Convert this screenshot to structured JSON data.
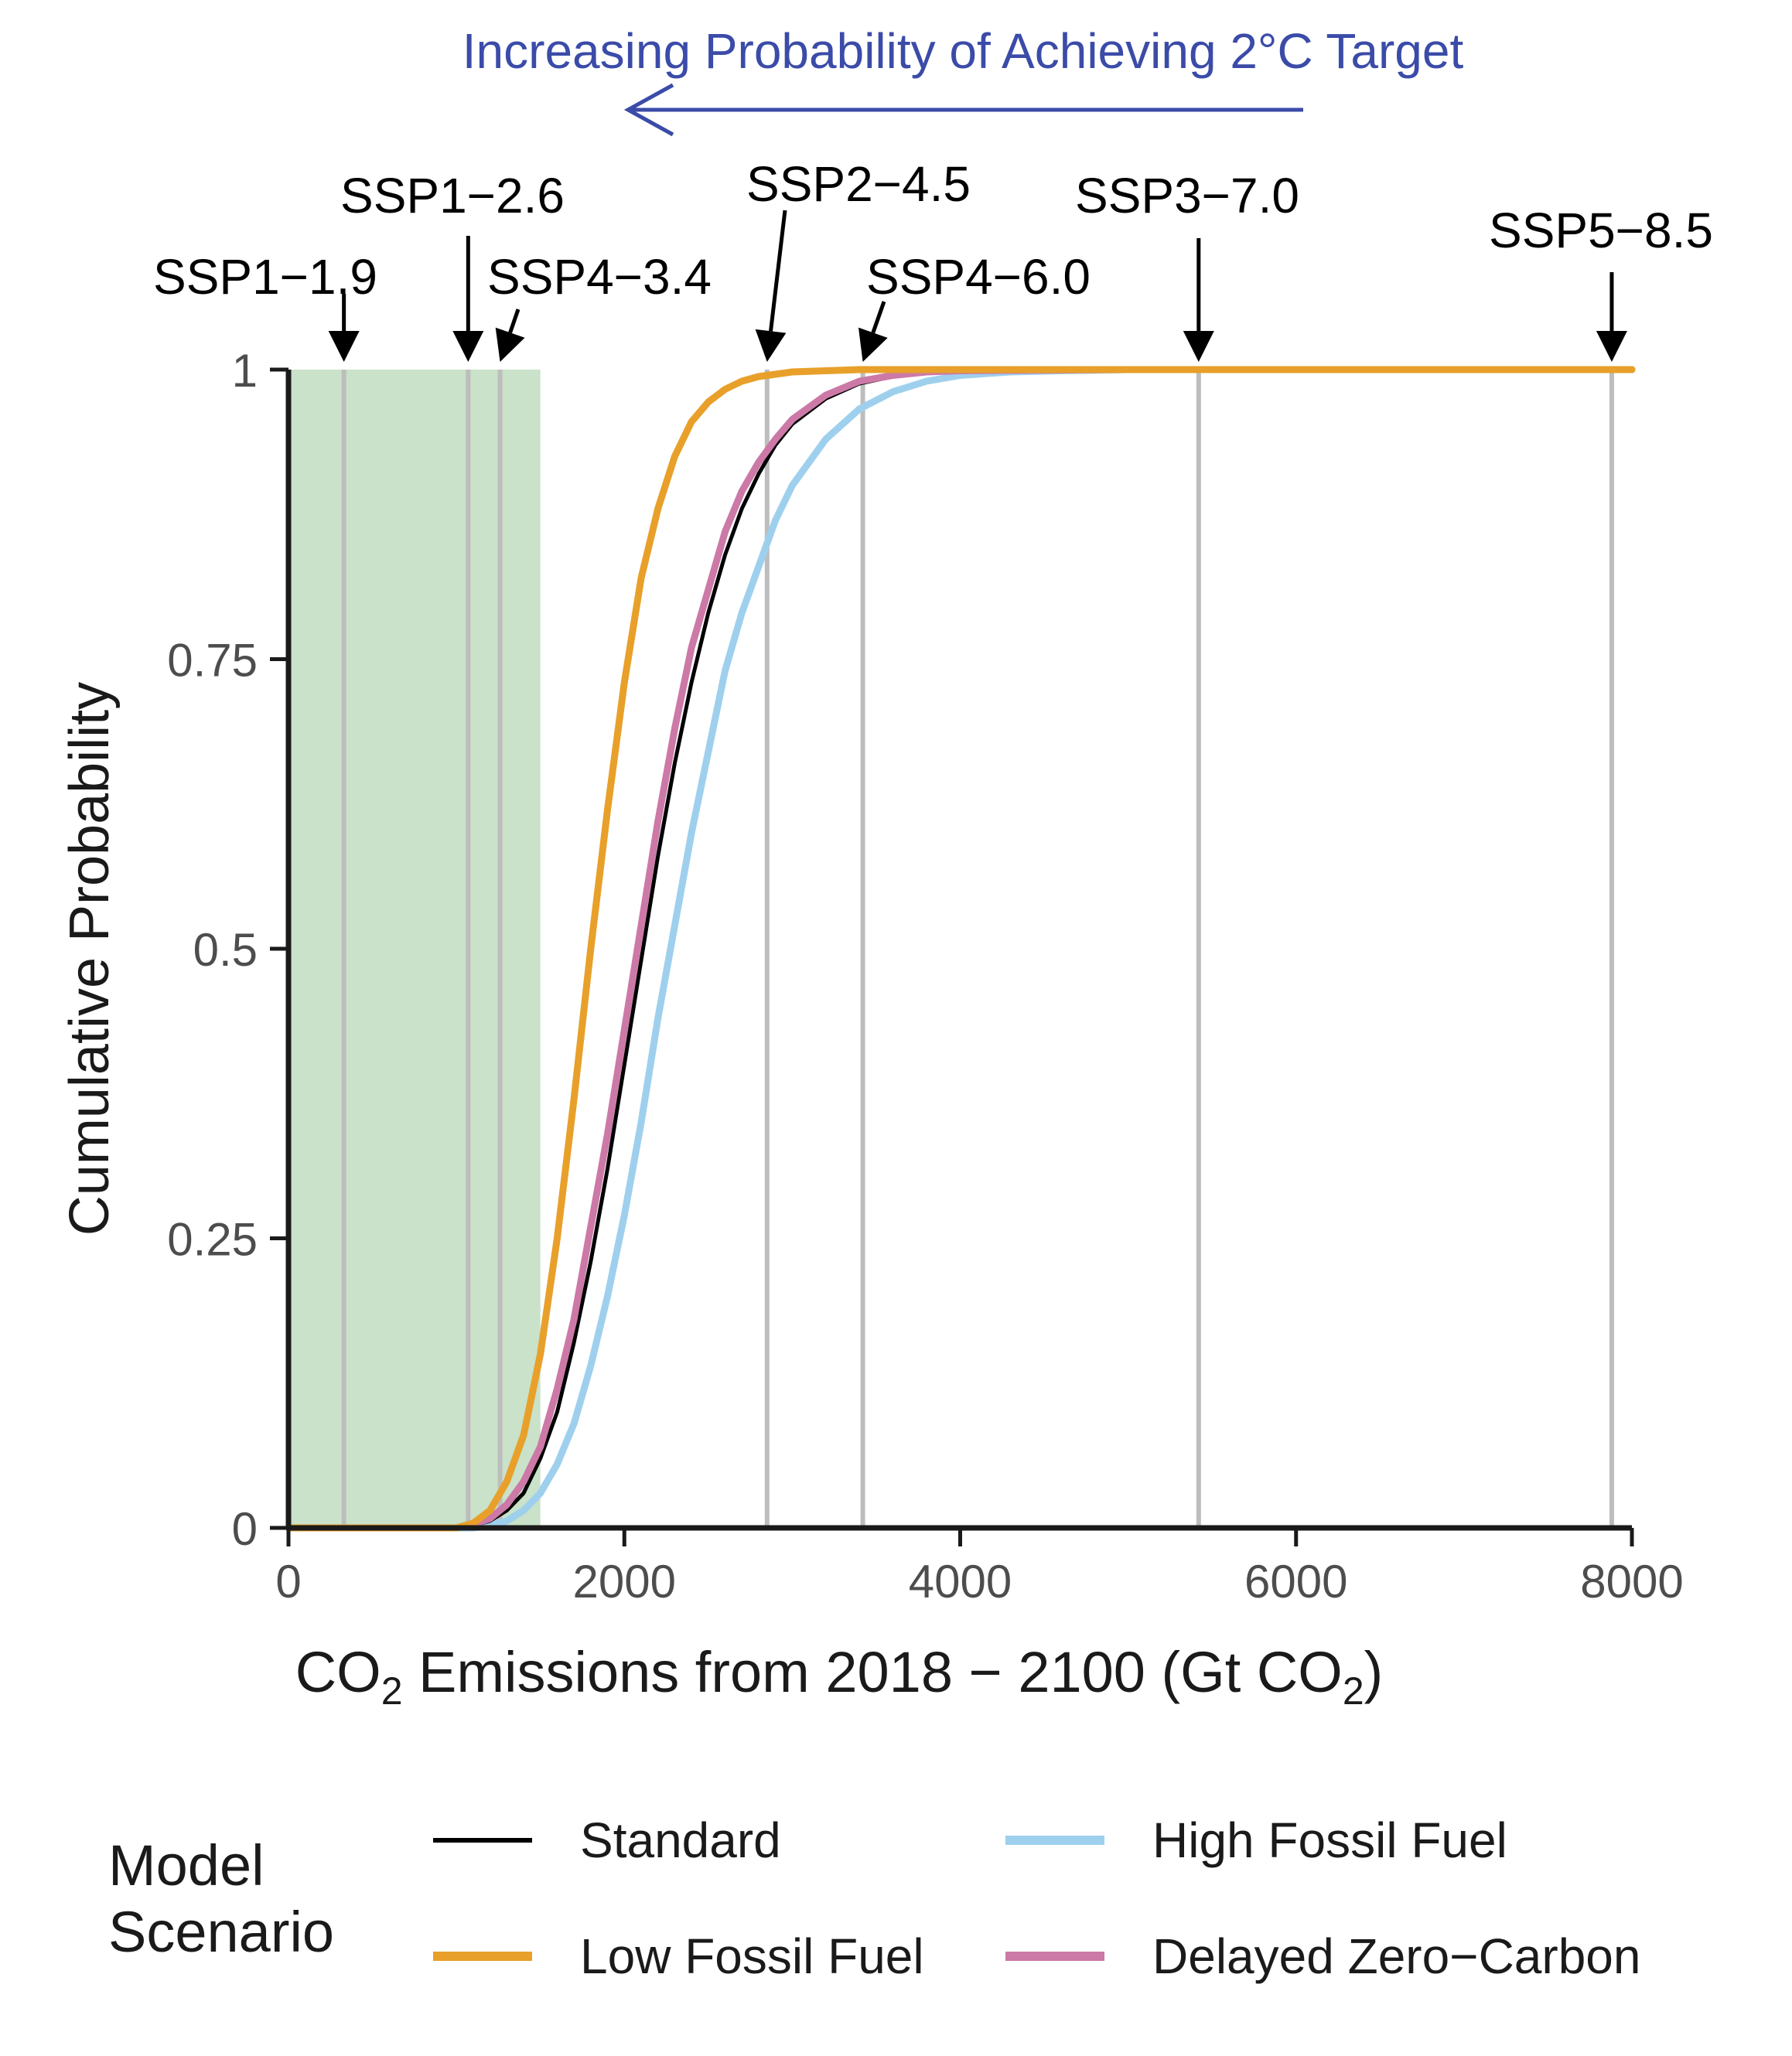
{
  "chart_data": {
    "type": "line",
    "annotation_top": "Increasing Probability of Achieving 2°C Target",
    "annotation_color": "#3b4ba8",
    "xlabel_parts": {
      "a": "CO",
      "sub1": "2",
      "b": " Emissions from 2018 − 2100 (Gt CO",
      "sub2": "2",
      "c": ")"
    },
    "ylabel": "Cumulative Probability",
    "xlim": [
      0,
      8000
    ],
    "ylim": [
      0,
      1
    ],
    "x_ticks": [
      0,
      2000,
      4000,
      6000,
      8000
    ],
    "x_tick_labels": [
      "0",
      "2000",
      "4000",
      "6000",
      "8000"
    ],
    "y_ticks": [
      0,
      0.25,
      0.5,
      0.75,
      1
    ],
    "y_tick_labels": [
      "0",
      "0.25",
      "0.5",
      "0.75",
      "1"
    ],
    "shaded_region": {
      "x": [
        0,
        1500
      ],
      "color": "#c9e2c9"
    },
    "ssp_markers": [
      {
        "label": "SSP1−1.9",
        "x": 330
      },
      {
        "label": "SSP1−2.6",
        "x": 1070
      },
      {
        "label": "SSP4−3.4",
        "x": 1260
      },
      {
        "label": "SSP2−4.5",
        "x": 2850
      },
      {
        "label": "SSP4−6.0",
        "x": 3420
      },
      {
        "label": "SSP3−7.0",
        "x": 5420
      },
      {
        "label": "SSP5−8.5",
        "x": 7880
      }
    ],
    "series": [
      {
        "name": "Standard",
        "color": "#000000",
        "x": [
          1000,
          1100,
          1200,
          1300,
          1400,
          1500,
          1600,
          1700,
          1800,
          1900,
          2000,
          2100,
          2200,
          2300,
          2400,
          2500,
          2600,
          2700,
          2800,
          2900,
          3000,
          3200,
          3400,
          3600,
          3800,
          4000,
          5000,
          8000
        ],
        "y": [
          0,
          0.002,
          0.006,
          0.015,
          0.03,
          0.06,
          0.1,
          0.16,
          0.23,
          0.31,
          0.4,
          0.49,
          0.58,
          0.66,
          0.73,
          0.79,
          0.84,
          0.88,
          0.91,
          0.935,
          0.953,
          0.975,
          0.988,
          0.994,
          0.997,
          0.999,
          1,
          1
        ]
      },
      {
        "name": "Low Fossil Fuel",
        "color": "#e8a02a",
        "x": [
          1000,
          1100,
          1200,
          1300,
          1400,
          1500,
          1600,
          1700,
          1800,
          1900,
          2000,
          2100,
          2200,
          2300,
          2400,
          2500,
          2600,
          2700,
          2800,
          2900,
          3000,
          3200,
          3400,
          3600,
          4000,
          8000
        ],
        "y": [
          0,
          0.004,
          0.015,
          0.04,
          0.08,
          0.15,
          0.25,
          0.37,
          0.5,
          0.62,
          0.73,
          0.82,
          0.88,
          0.925,
          0.955,
          0.972,
          0.983,
          0.99,
          0.994,
          0.996,
          0.998,
          0.999,
          1,
          1,
          1,
          1
        ]
      },
      {
        "name": "High Fossil Fuel",
        "color": "#9ed0ee",
        "x": [
          1100,
          1200,
          1300,
          1400,
          1500,
          1600,
          1700,
          1800,
          1900,
          2000,
          2100,
          2200,
          2300,
          2400,
          2500,
          2600,
          2700,
          2800,
          2900,
          3000,
          3200,
          3400,
          3600,
          3800,
          4000,
          4300,
          4600,
          5000,
          8000
        ],
        "y": [
          0,
          0.002,
          0.006,
          0.015,
          0.03,
          0.055,
          0.09,
          0.14,
          0.2,
          0.27,
          0.35,
          0.44,
          0.52,
          0.6,
          0.67,
          0.74,
          0.79,
          0.83,
          0.87,
          0.9,
          0.94,
          0.966,
          0.981,
          0.99,
          0.995,
          0.998,
          0.999,
          1,
          1
        ]
      },
      {
        "name": "Delayed Zero−Carbon",
        "color": "#cc79a7",
        "x": [
          1000,
          1100,
          1200,
          1300,
          1400,
          1500,
          1600,
          1700,
          1800,
          1900,
          2000,
          2100,
          2200,
          2300,
          2400,
          2500,
          2600,
          2700,
          2800,
          2900,
          3000,
          3200,
          3400,
          3600,
          3800,
          4000,
          5000,
          8000
        ],
        "y": [
          0,
          0.003,
          0.008,
          0.02,
          0.04,
          0.07,
          0.12,
          0.18,
          0.26,
          0.34,
          0.43,
          0.52,
          0.61,
          0.69,
          0.76,
          0.81,
          0.86,
          0.895,
          0.92,
          0.94,
          0.957,
          0.978,
          0.99,
          0.995,
          0.998,
          0.999,
          1,
          1
        ]
      }
    ]
  },
  "legend": {
    "title": "Model Scenario",
    "items": [
      {
        "label": "Standard",
        "color": "#000000"
      },
      {
        "label": "High Fossil Fuel",
        "color": "#9ed0ee"
      },
      {
        "label": "Low Fossil Fuel",
        "color": "#e8a02a"
      },
      {
        "label": "Delayed Zero−Carbon",
        "color": "#cc79a7"
      }
    ]
  }
}
